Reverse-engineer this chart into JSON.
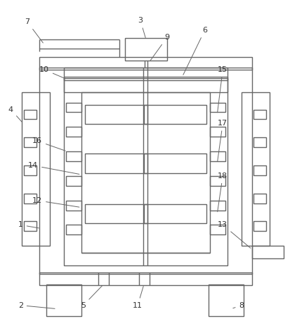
{
  "line_color": "#666666",
  "bg_color": "#ffffff",
  "label_color": "#333333",
  "figsize": [
    4.13,
    4.63
  ],
  "dpi": 100
}
